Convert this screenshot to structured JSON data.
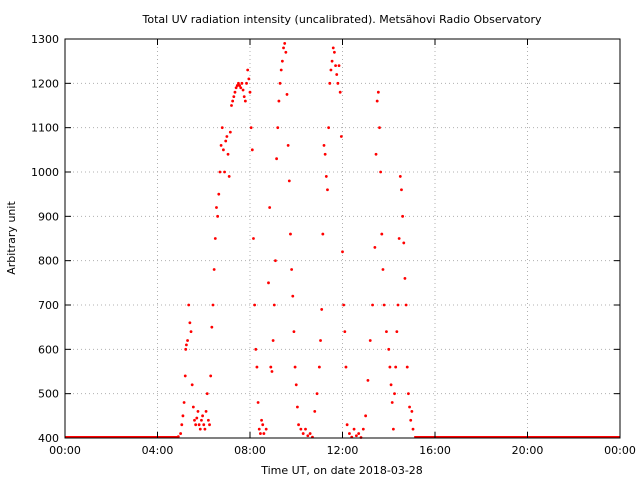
{
  "chart_data": {
    "type": "scatter",
    "title": "Total UV radiation intensity (uncalibrated). Metsähovi Radio Observatory",
    "xlabel": "Time UT, on date 2018-03-28",
    "ylabel": "Arbitrary unit",
    "x_unit": "hours UT",
    "xlim": [
      0,
      24
    ],
    "ylim": [
      400,
      1300
    ],
    "x_ticks": [
      0,
      4,
      8,
      12,
      16,
      20,
      24
    ],
    "x_tick_labels": [
      "00:00",
      "04:00",
      "08:00",
      "12:00",
      "16:00",
      "20:00",
      "00:00"
    ],
    "y_ticks": [
      400,
      500,
      600,
      700,
      800,
      900,
      1000,
      1100,
      1200,
      1300
    ],
    "y_tick_labels": [
      "400",
      "500",
      "600",
      "700",
      "800",
      "900",
      "1000",
      "1100",
      "1200",
      "1300"
    ],
    "grid": true,
    "marker_color": "#ff0000",
    "baseline_segments": [
      {
        "x_start": 0.0,
        "x_end": 4.9,
        "y": 400
      },
      {
        "x_start": 15.1,
        "x_end": 24.0,
        "y": 400
      }
    ],
    "series": [
      {
        "points": [
          [
            4.9,
            403
          ],
          [
            5.0,
            410
          ],
          [
            5.05,
            430
          ],
          [
            5.1,
            450
          ],
          [
            5.15,
            480
          ],
          [
            5.2,
            540
          ],
          [
            5.22,
            600
          ],
          [
            5.25,
            610
          ],
          [
            5.3,
            620
          ],
          [
            5.35,
            700
          ],
          [
            5.4,
            660
          ],
          [
            5.45,
            640
          ],
          [
            5.5,
            520
          ],
          [
            5.55,
            470
          ],
          [
            5.6,
            440
          ],
          [
            5.65,
            430
          ],
          [
            5.7,
            445
          ],
          [
            5.75,
            460
          ],
          [
            5.8,
            430
          ],
          [
            5.85,
            420
          ],
          [
            5.9,
            440
          ],
          [
            5.95,
            450
          ],
          [
            6.0,
            430
          ],
          [
            6.05,
            420
          ],
          [
            6.1,
            460
          ],
          [
            6.15,
            500
          ],
          [
            6.2,
            440
          ],
          [
            6.25,
            430
          ],
          [
            6.3,
            540
          ],
          [
            6.35,
            650
          ],
          [
            6.4,
            700
          ],
          [
            6.45,
            780
          ],
          [
            6.5,
            850
          ],
          [
            6.55,
            920
          ],
          [
            6.6,
            900
          ],
          [
            6.65,
            950
          ],
          [
            6.7,
            1000
          ],
          [
            6.75,
            1060
          ],
          [
            6.8,
            1100
          ],
          [
            6.85,
            1050
          ],
          [
            6.9,
            1000
          ],
          [
            6.95,
            1070
          ],
          [
            7.0,
            1080
          ],
          [
            7.05,
            1040
          ],
          [
            7.1,
            990
          ],
          [
            7.15,
            1090
          ],
          [
            7.2,
            1150
          ],
          [
            7.25,
            1160
          ],
          [
            7.3,
            1170
          ],
          [
            7.35,
            1180
          ],
          [
            7.4,
            1190
          ],
          [
            7.45,
            1195
          ],
          [
            7.5,
            1200
          ],
          [
            7.55,
            1195
          ],
          [
            7.6,
            1190
          ],
          [
            7.65,
            1200
          ],
          [
            7.7,
            1185
          ],
          [
            7.75,
            1170
          ],
          [
            7.8,
            1160
          ],
          [
            7.85,
            1200
          ],
          [
            7.9,
            1230
          ],
          [
            7.95,
            1210
          ],
          [
            8.0,
            1180
          ],
          [
            8.05,
            1100
          ],
          [
            8.1,
            1050
          ],
          [
            8.15,
            850
          ],
          [
            8.2,
            700
          ],
          [
            8.25,
            600
          ],
          [
            8.3,
            560
          ],
          [
            8.35,
            480
          ],
          [
            8.4,
            420
          ],
          [
            8.45,
            410
          ],
          [
            8.5,
            440
          ],
          [
            8.55,
            430
          ],
          [
            8.6,
            410
          ],
          [
            8.7,
            420
          ],
          [
            8.8,
            750
          ],
          [
            8.85,
            920
          ],
          [
            8.9,
            560
          ],
          [
            8.95,
            550
          ],
          [
            9.0,
            620
          ],
          [
            9.05,
            700
          ],
          [
            9.1,
            800
          ],
          [
            9.15,
            1030
          ],
          [
            9.2,
            1100
          ],
          [
            9.25,
            1160
          ],
          [
            9.3,
            1200
          ],
          [
            9.35,
            1230
          ],
          [
            9.4,
            1250
          ],
          [
            9.45,
            1280
          ],
          [
            9.5,
            1290
          ],
          [
            9.55,
            1270
          ],
          [
            9.6,
            1175
          ],
          [
            9.65,
            1060
          ],
          [
            9.7,
            980
          ],
          [
            9.75,
            860
          ],
          [
            9.8,
            780
          ],
          [
            9.85,
            720
          ],
          [
            9.9,
            640
          ],
          [
            9.95,
            560
          ],
          [
            10.0,
            520
          ],
          [
            10.05,
            470
          ],
          [
            10.1,
            430
          ],
          [
            10.2,
            420
          ],
          [
            10.3,
            410
          ],
          [
            10.4,
            420
          ],
          [
            10.5,
            405
          ],
          [
            10.6,
            410
          ],
          [
            10.7,
            402
          ],
          [
            10.8,
            460
          ],
          [
            10.9,
            500
          ],
          [
            11.0,
            560
          ],
          [
            11.05,
            620
          ],
          [
            11.1,
            690
          ],
          [
            11.15,
            860
          ],
          [
            11.2,
            1060
          ],
          [
            11.25,
            1040
          ],
          [
            11.3,
            990
          ],
          [
            11.35,
            960
          ],
          [
            11.4,
            1100
          ],
          [
            11.45,
            1200
          ],
          [
            11.5,
            1230
          ],
          [
            11.55,
            1250
          ],
          [
            11.6,
            1280
          ],
          [
            11.65,
            1270
          ],
          [
            11.7,
            1240
          ],
          [
            11.75,
            1220
          ],
          [
            11.8,
            1200
          ],
          [
            11.85,
            1240
          ],
          [
            11.9,
            1180
          ],
          [
            11.95,
            1080
          ],
          [
            12.0,
            820
          ],
          [
            12.05,
            700
          ],
          [
            12.1,
            640
          ],
          [
            12.15,
            560
          ],
          [
            12.2,
            430
          ],
          [
            12.3,
            410
          ],
          [
            12.4,
            402
          ],
          [
            12.5,
            420
          ],
          [
            12.6,
            405
          ],
          [
            12.7,
            410
          ],
          [
            12.8,
            401
          ],
          [
            12.9,
            420
          ],
          [
            13.0,
            450
          ],
          [
            13.1,
            530
          ],
          [
            13.2,
            620
          ],
          [
            13.3,
            700
          ],
          [
            13.4,
            830
          ],
          [
            13.45,
            1040
          ],
          [
            13.5,
            1160
          ],
          [
            13.55,
            1180
          ],
          [
            13.6,
            1100
          ],
          [
            13.65,
            1000
          ],
          [
            13.7,
            860
          ],
          [
            13.75,
            780
          ],
          [
            13.8,
            700
          ],
          [
            13.9,
            640
          ],
          [
            14.0,
            600
          ],
          [
            14.05,
            560
          ],
          [
            14.1,
            520
          ],
          [
            14.15,
            480
          ],
          [
            14.2,
            420
          ],
          [
            14.25,
            500
          ],
          [
            14.3,
            560
          ],
          [
            14.35,
            640
          ],
          [
            14.4,
            700
          ],
          [
            14.45,
            850
          ],
          [
            14.5,
            990
          ],
          [
            14.55,
            960
          ],
          [
            14.6,
            900
          ],
          [
            14.65,
            840
          ],
          [
            14.7,
            760
          ],
          [
            14.75,
            700
          ],
          [
            14.8,
            560
          ],
          [
            14.85,
            500
          ],
          [
            14.9,
            470
          ],
          [
            14.95,
            440
          ],
          [
            15.0,
            460
          ],
          [
            15.05,
            420
          ]
        ]
      }
    ]
  }
}
